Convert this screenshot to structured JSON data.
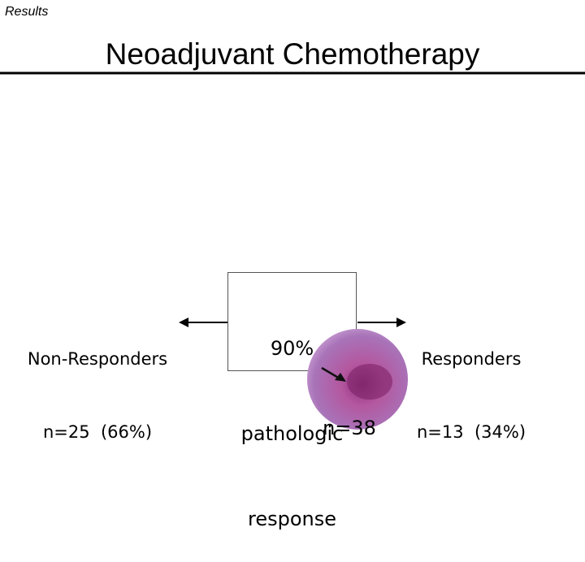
{
  "header": {
    "section": "Results",
    "title": "Neoadjuvant Chemotherapy"
  },
  "left": {
    "label": "Non-Responders",
    "count": "n=25  (66%)"
  },
  "center": {
    "lines": [
      "90%",
      "pathologic",
      "response"
    ],
    "count": "n=38"
  },
  "right": {
    "label": "Responders",
    "count": "n=13  (34%)"
  }
}
